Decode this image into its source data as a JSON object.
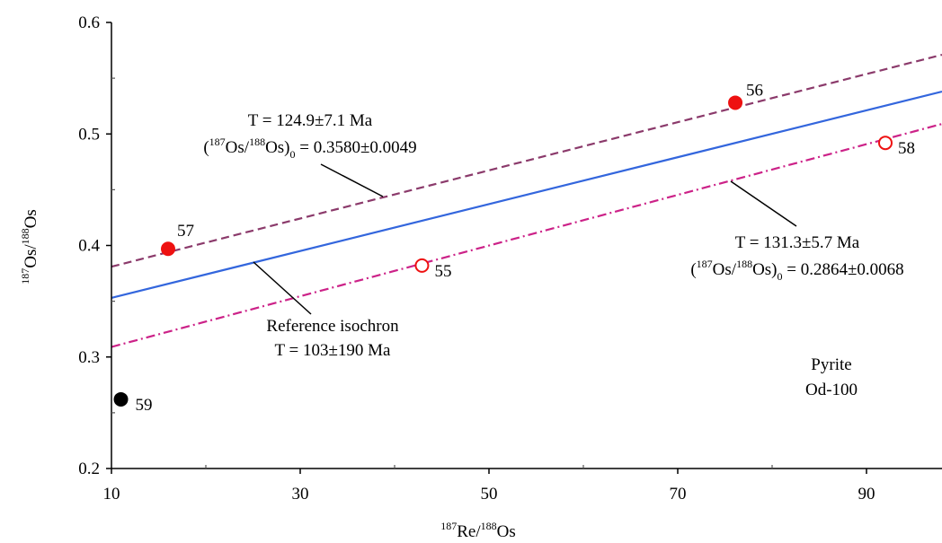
{
  "chart_data": {
    "type": "scatter",
    "xlabel": {
      "pre": "187",
      "main": "Re/",
      "pre2": "188",
      "main2": "Os"
    },
    "ylabel": {
      "pre": "187",
      "main": "Os/",
      "pre2": "188",
      "main2": "Os"
    },
    "xlim": [
      10,
      98
    ],
    "ylim": [
      0.2,
      0.6
    ],
    "x_ticks": [
      10,
      30,
      50,
      70,
      90
    ],
    "x_tick_labels": [
      "10",
      "30",
      "50",
      "70",
      "90"
    ],
    "y_ticks": [
      0.2,
      0.3,
      0.4,
      0.5,
      0.6
    ],
    "y_tick_labels": [
      "0.2",
      "0.3",
      "0.4",
      "0.5",
      "0.6"
    ],
    "grid": false,
    "points": [
      {
        "label": "55",
        "x": 42.9,
        "y": 0.382,
        "style": "open-red"
      },
      {
        "label": "56",
        "x": 76.1,
        "y": 0.528,
        "style": "filled-red"
      },
      {
        "label": "57",
        "x": 16.0,
        "y": 0.397,
        "style": "filled-red"
      },
      {
        "label": "58",
        "x": 92.0,
        "y": 0.492,
        "style": "open-red"
      },
      {
        "label": "59",
        "x": 11.0,
        "y": 0.262,
        "style": "filled-black"
      }
    ],
    "lines": [
      {
        "name": "upper isochron",
        "x0": 10,
        "y0": 0.381,
        "x1": 98,
        "y1": 0.571,
        "color": "#8B3A6B",
        "style": "dashed"
      },
      {
        "name": "Reference isochron",
        "x0": 10,
        "y0": 0.353,
        "x1": 98,
        "y1": 0.538,
        "color": "#3366DD",
        "style": "solid"
      },
      {
        "name": "lower isochron",
        "x0": 10,
        "y0": 0.309,
        "x1": 98,
        "y1": 0.509,
        "color": "#CC2288",
        "style": "dashdot"
      }
    ],
    "annotations": {
      "upper_T": "T = 124.9±7.1 Ma",
      "upper_R_value": " = 0.3580±0.0049",
      "lower_T": "T = 131.3±5.7 Ma",
      "lower_R_value": " = 0.2864±0.0068",
      "ratio_parts": {
        "open": "(",
        "a_sup": "187",
        "a": "Os/",
        "b_sup": "188",
        "b": "Os)",
        "sub": "0"
      },
      "ref_line1": "Reference isochron",
      "ref_line2": "T = 103±190 Ma",
      "sample_line1": "Pyrite",
      "sample_line2": "Od-100"
    },
    "colors": {
      "red": "#EE1111",
      "black": "#000000",
      "axis": "#000000"
    }
  }
}
